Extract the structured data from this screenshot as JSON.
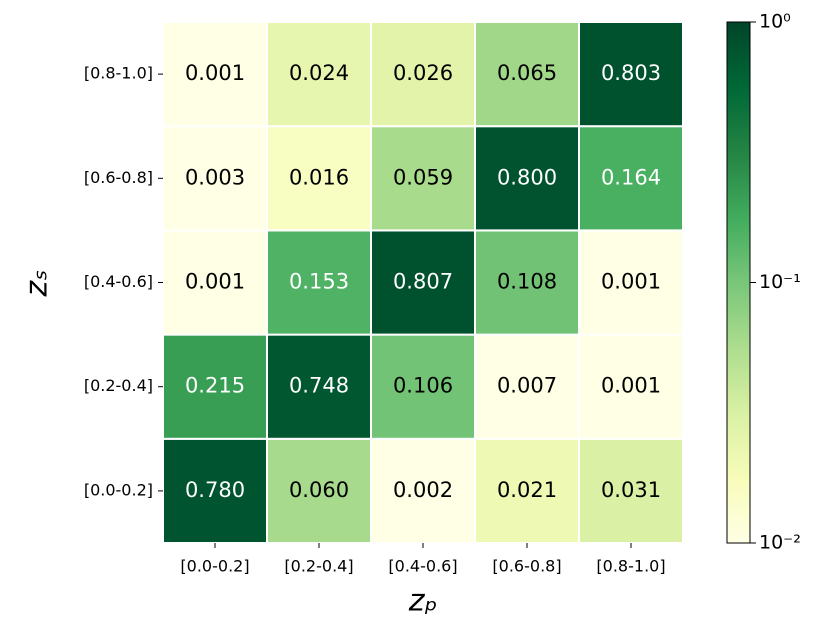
{
  "chart_data": {
    "type": "heatmap",
    "x_categories": [
      "[0.0-0.2]",
      "[0.2-0.4]",
      "[0.4-0.6]",
      "[0.6-0.8]",
      "[0.8-1.0]"
    ],
    "y_categories": [
      "[0.0-0.2]",
      "[0.2-0.4]",
      "[0.4-0.6]",
      "[0.6-0.8]",
      "[0.8-1.0]"
    ],
    "xlabel": "zₚ",
    "ylabel": "zₛ",
    "values": [
      [
        0.78,
        0.06,
        0.002,
        0.021,
        0.031
      ],
      [
        0.215,
        0.748,
        0.106,
        0.007,
        0.001
      ],
      [
        0.001,
        0.153,
        0.807,
        0.108,
        0.001
      ],
      [
        0.003,
        0.016,
        0.059,
        0.8,
        0.164
      ],
      [
        0.001,
        0.024,
        0.026,
        0.065,
        0.803
      ]
    ],
    "value_labels": [
      [
        "0.780",
        "0.060",
        "0.002",
        "0.021",
        "0.031"
      ],
      [
        "0.215",
        "0.748",
        "0.106",
        "0.007",
        "0.001"
      ],
      [
        "0.001",
        "0.153",
        "0.807",
        "0.108",
        "0.001"
      ],
      [
        "0.003",
        "0.016",
        "0.059",
        "0.800",
        "0.164"
      ],
      [
        "0.001",
        "0.024",
        "0.026",
        "0.065",
        "0.803"
      ]
    ],
    "colormap": [
      "#ffffe5",
      "#f7fcb9",
      "#d9f0a3",
      "#addd8e",
      "#78c679",
      "#41ab5d",
      "#238443",
      "#006837",
      "#004529"
    ],
    "color_scale": "log",
    "clim": [
      0.01,
      1
    ],
    "cticks": [
      {
        "value": 0.01,
        "label": "10⁻²"
      },
      {
        "value": 0.1,
        "label": "10⁻¹"
      },
      {
        "value": 1,
        "label": "10⁰"
      }
    ]
  }
}
